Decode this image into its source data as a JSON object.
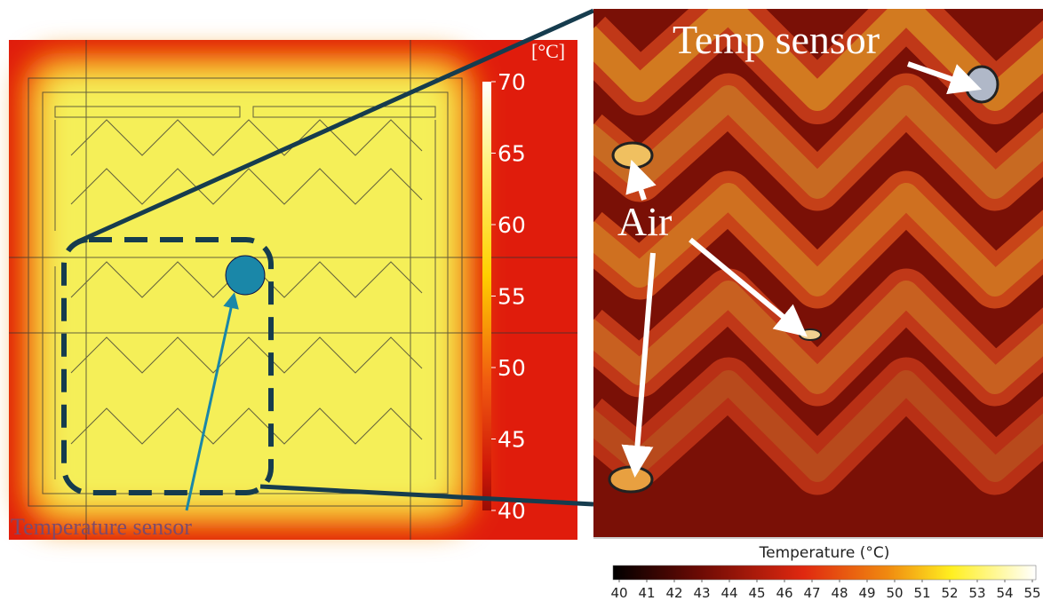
{
  "left_panel": {
    "unit": "[°C]",
    "colorbar_ticks": [
      70,
      65,
      60,
      55,
      50,
      45,
      40
    ],
    "annotation": "Temperature sensor"
  },
  "right_panel": {
    "annotations": {
      "temp_sensor": "Temp sensor",
      "air": "Air"
    },
    "colorbar": {
      "title": "Temperature (°C)",
      "ticks": [
        40,
        41,
        42,
        43,
        44,
        45,
        46,
        47,
        48,
        49,
        50,
        51,
        52,
        53,
        54,
        55
      ]
    }
  }
}
